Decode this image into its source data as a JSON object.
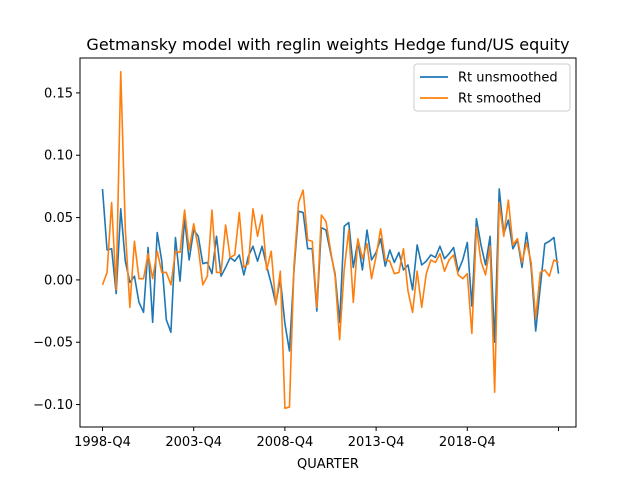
{
  "chart_data": {
    "type": "line",
    "title": "Getmansky model with reglin weights Hedge fund/US equity",
    "xlabel": "QUARTER",
    "ylabel": "",
    "x_start_label": "1998-Q4",
    "x_tick_labels": [
      "1998-Q4",
      "2003-Q4",
      "2008-Q4",
      "2013-Q4",
      "2018-Q4",
      ""
    ],
    "ylim": [
      -0.118,
      0.178
    ],
    "y_ticks": [
      -0.1,
      -0.05,
      0.0,
      0.05,
      0.1,
      0.15
    ],
    "y_tick_labels": [
      "−0.10",
      "−0.05",
      "0.00",
      "0.05",
      "0.10",
      "0.15"
    ],
    "grid": false,
    "legend_position": "top-right",
    "series": [
      {
        "name": "Rt unsmoothed",
        "color": "#1f77b4",
        "values": [
          0.073,
          0.024,
          0.025,
          -0.011,
          0.057,
          0.015,
          -0.002,
          0.003,
          -0.018,
          -0.026,
          0.026,
          -0.034,
          0.038,
          0.015,
          -0.032,
          -0.042,
          0.034,
          -0.001,
          0.049,
          0.016,
          0.04,
          0.035,
          0.013,
          0.014,
          0.005,
          0.035,
          0.003,
          0.01,
          0.018,
          0.015,
          0.02,
          0.004,
          0.019,
          0.027,
          0.015,
          0.027,
          0.011,
          -0.003,
          -0.019,
          0.001,
          -0.035,
          -0.057,
          0.008,
          0.055,
          0.054,
          0.025,
          0.025,
          -0.025,
          0.042,
          0.04,
          0.022,
          0.005,
          -0.034,
          0.043,
          0.046,
          0.01,
          0.031,
          0.008,
          0.04,
          0.016,
          0.022,
          0.033,
          0.011,
          0.024,
          0.014,
          0.022,
          0.008,
          0.012,
          -0.008,
          0.028,
          0.012,
          0.015,
          0.02,
          0.018,
          0.027,
          0.017,
          0.021,
          0.026,
          0.007,
          0.016,
          0.03,
          -0.021,
          0.049,
          0.028,
          0.012,
          0.035,
          -0.05,
          0.073,
          0.037,
          0.048,
          0.025,
          0.032,
          0.01,
          0.038,
          0.01,
          -0.041,
          -0.006,
          0.029,
          0.031,
          0.034,
          0.005
        ]
      },
      {
        "name": "Rt smoothed",
        "color": "#ff7f0e",
        "values": [
          -0.004,
          0.006,
          0.062,
          -0.008,
          0.167,
          0.041,
          -0.022,
          0.031,
          0.001,
          0.001,
          0.021,
          0.001,
          0.023,
          0.006,
          0.006,
          -0.004,
          0.023,
          0.022,
          0.056,
          0.024,
          0.045,
          0.026,
          -0.004,
          0.003,
          0.056,
          0.006,
          0.006,
          0.044,
          0.018,
          0.02,
          0.054,
          0.01,
          0.013,
          0.057,
          0.035,
          0.052,
          0.008,
          0.023,
          -0.02,
          0.007,
          -0.103,
          -0.102,
          0.012,
          0.062,
          0.072,
          0.032,
          0.031,
          -0.022,
          0.052,
          0.047,
          0.024,
          0.003,
          -0.048,
          0.008,
          0.04,
          -0.018,
          0.033,
          0.017,
          0.029,
          0.001,
          0.019,
          0.041,
          0.016,
          0.015,
          0.005,
          0.006,
          0.025,
          -0.009,
          -0.026,
          0.007,
          -0.022,
          0.005,
          0.016,
          0.014,
          0.021,
          0.007,
          0.016,
          0.02,
          0.004,
          0.001,
          0.005,
          -0.043,
          0.042,
          0.015,
          0.004,
          0.027,
          -0.09,
          0.062,
          0.035,
          0.064,
          0.028,
          0.033,
          0.014,
          0.03,
          0.014,
          -0.031,
          0.006,
          0.008,
          0.003,
          0.016,
          0.014
        ]
      }
    ]
  }
}
